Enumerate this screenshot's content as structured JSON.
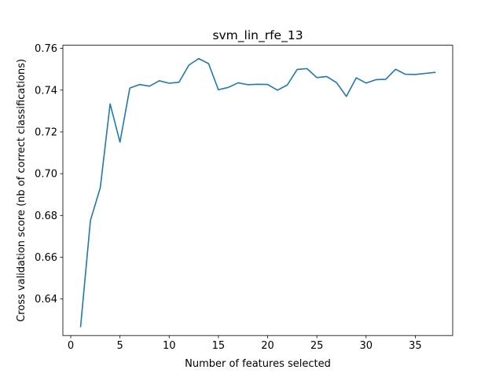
{
  "chart_data": {
    "type": "line",
    "title": "svm_lin_rfe_13",
    "xlabel": "Number of features selected",
    "ylabel": "Cross validation score (nb of correct classifications)",
    "xlim": [
      -0.8,
      38.8
    ],
    "ylim": [
      0.6225,
      0.7615
    ],
    "x_ticks": [
      0,
      5,
      10,
      15,
      20,
      25,
      30,
      35
    ],
    "y_ticks": [
      0.64,
      0.66,
      0.68,
      0.7,
      0.72,
      0.74,
      0.76
    ],
    "grid": false,
    "line_color": "#1f77b4",
    "series": [
      {
        "x": [
          1,
          2,
          3,
          4,
          5,
          6,
          7,
          8,
          9,
          10,
          11,
          12,
          13,
          14,
          15,
          16,
          17,
          18,
          19,
          20,
          21,
          22,
          23,
          24,
          25,
          26,
          27,
          28,
          29,
          30,
          31,
          32,
          33,
          34,
          35,
          36,
          37
        ],
        "values": [
          0.6268,
          0.6776,
          0.6933,
          0.7334,
          0.7151,
          0.741,
          0.7427,
          0.7419,
          0.7445,
          0.7433,
          0.7438,
          0.752,
          0.7551,
          0.7527,
          0.7402,
          0.7413,
          0.7435,
          0.7426,
          0.7428,
          0.7427,
          0.74,
          0.7425,
          0.7499,
          0.7503,
          0.746,
          0.7465,
          0.7436,
          0.737,
          0.7459,
          0.7434,
          0.745,
          0.7452,
          0.75,
          0.7476,
          0.7475,
          0.748,
          0.7485
        ]
      }
    ]
  }
}
